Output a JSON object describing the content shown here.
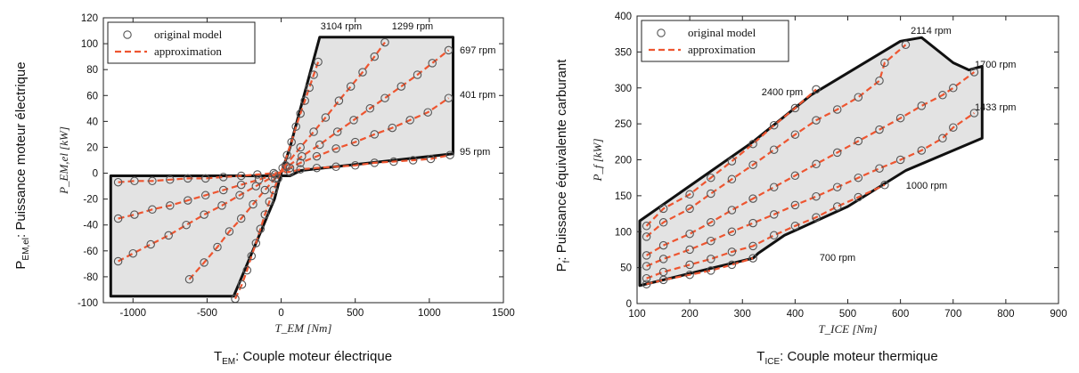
{
  "chart_data": [
    {
      "type": "scatter",
      "xlabel": "T_EM [Nm]",
      "ylabel": "P_EM,el [kW]",
      "xlim": [
        -1200,
        1500
      ],
      "ylim": [
        -100,
        120
      ],
      "xticks": [
        "-1000",
        "-500",
        "0",
        "500",
        "1000",
        "1500"
      ],
      "yticks": [
        "-100",
        "-80",
        "-60",
        "-40",
        "-20",
        "0",
        "20",
        "40",
        "60",
        "80",
        "100",
        "120"
      ],
      "outer_label": {
        "main": "T",
        "sub": "EM",
        "rest": ": Couple moteur électrique"
      },
      "side_label": {
        "main": "P",
        "sub": "EM,el",
        "rest": ": Puissance moteur électrique"
      },
      "legend": {
        "marker": "original model",
        "line": "approximation",
        "position": "top-left"
      },
      "envelope": [
        [
          -1150,
          -2
        ],
        [
          -1150,
          -95
        ],
        [
          -320,
          -95
        ],
        [
          -45,
          -20
        ],
        [
          0,
          0
        ],
        [
          60,
          20
        ],
        [
          260,
          105
        ],
        [
          1160,
          105
        ],
        [
          1160,
          15
        ],
        [
          130,
          2
        ],
        [
          60,
          -2
        ],
        [
          -1150,
          -2
        ]
      ],
      "series": [
        {
          "label": "3104 rpm",
          "points": [
            [
              -310,
              -97
            ],
            [
              -265,
              -86
            ],
            [
              -230,
              -75
            ],
            [
              -200,
              -64
            ],
            [
              -170,
              -54
            ],
            [
              -140,
              -43
            ],
            [
              -110,
              -32
            ],
            [
              -80,
              -22
            ],
            [
              -50,
              -13
            ],
            [
              -20,
              -4
            ],
            [
              10,
              4
            ],
            [
              40,
              14
            ],
            [
              70,
              24
            ],
            [
              100,
              36
            ],
            [
              130,
              46
            ],
            [
              160,
              56
            ],
            [
              190,
              66
            ],
            [
              220,
              76
            ],
            [
              250,
              86
            ]
          ]
        },
        {
          "label": "1299 rpm",
          "points": [
            [
              -620,
              -82
            ],
            [
              -520,
              -69
            ],
            [
              -430,
              -57
            ],
            [
              -350,
              -45
            ],
            [
              -270,
              -35
            ],
            [
              -190,
              -24
            ],
            [
              -110,
              -13
            ],
            [
              -40,
              -4
            ],
            [
              30,
              6
            ],
            [
              130,
              20
            ],
            [
              220,
              32
            ],
            [
              300,
              43
            ],
            [
              390,
              56
            ],
            [
              470,
              67
            ],
            [
              550,
              78
            ],
            [
              630,
              90
            ],
            [
              700,
              101
            ]
          ]
        },
        {
          "label": "697 rpm",
          "points": [
            [
              -1100,
              -68
            ],
            [
              -1000,
              -62
            ],
            [
              -880,
              -55
            ],
            [
              -760,
              -48
            ],
            [
              -640,
              -40
            ],
            [
              -520,
              -32
            ],
            [
              -400,
              -25
            ],
            [
              -280,
              -17
            ],
            [
              -170,
              -10
            ],
            [
              -60,
              -3
            ],
            [
              40,
              5
            ],
            [
              140,
              13
            ],
            [
              260,
              22
            ],
            [
              380,
              32
            ],
            [
              490,
              41
            ],
            [
              600,
              50
            ],
            [
              700,
              58
            ],
            [
              810,
              67
            ],
            [
              920,
              76
            ],
            [
              1020,
              85
            ],
            [
              1130,
              95
            ]
          ]
        },
        {
          "label": "401 rpm",
          "points": [
            [
              -1100,
              -35
            ],
            [
              -990,
              -32
            ],
            [
              -870,
              -28
            ],
            [
              -750,
              -25
            ],
            [
              -630,
              -21
            ],
            [
              -510,
              -17
            ],
            [
              -390,
              -13
            ],
            [
              -270,
              -9
            ],
            [
              -150,
              -5
            ],
            [
              -40,
              -1
            ],
            [
              60,
              4
            ],
            [
              130,
              8
            ],
            [
              240,
              13
            ],
            [
              370,
              19
            ],
            [
              500,
              24
            ],
            [
              630,
              30
            ],
            [
              750,
              35
            ],
            [
              870,
              41
            ],
            [
              990,
              47
            ],
            [
              1130,
              58
            ]
          ]
        },
        {
          "label": "95 rpm",
          "points": [
            [
              -1100,
              -7
            ],
            [
              -990,
              -6
            ],
            [
              -870,
              -6
            ],
            [
              -750,
              -5
            ],
            [
              -630,
              -4
            ],
            [
              -510,
              -4
            ],
            [
              -390,
              -3
            ],
            [
              -270,
              -2
            ],
            [
              -160,
              -1
            ],
            [
              -50,
              0
            ],
            [
              60,
              1
            ],
            [
              130,
              3
            ],
            [
              240,
              4
            ],
            [
              370,
              5
            ],
            [
              500,
              6
            ],
            [
              630,
              8
            ],
            [
              760,
              9
            ],
            [
              890,
              10
            ],
            [
              1010,
              11
            ],
            [
              1140,
              14
            ]
          ]
        }
      ],
      "style": {
        "marker_color": "#555555",
        "line_color": "#ee5530",
        "envelope_fill": "#e3e3e3",
        "envelope_stroke": "#111111"
      }
    },
    {
      "type": "scatter",
      "xlabel": "T_ICE [Nm]",
      "ylabel": "P_f [kW]",
      "xlim": [
        100,
        900
      ],
      "ylim": [
        0,
        400
      ],
      "xticks": [
        "100",
        "200",
        "300",
        "400",
        "500",
        "600",
        "700",
        "800",
        "900"
      ],
      "yticks": [
        "0",
        "50",
        "100",
        "150",
        "200",
        "250",
        "300",
        "350",
        "400"
      ],
      "outer_label": {
        "main": "T",
        "sub": "ICE",
        "rest": ": Couple moteur thermique"
      },
      "side_label": {
        "main": "P",
        "sub": "f",
        "rest": ": Puissance équivalente carburant"
      },
      "legend": {
        "marker": "original model",
        "line": "approximation",
        "position": "top-left"
      },
      "envelope": [
        [
          105,
          115
        ],
        [
          320,
          225
        ],
        [
          430,
          290
        ],
        [
          600,
          365
        ],
        [
          640,
          370
        ],
        [
          700,
          335
        ],
        [
          730,
          325
        ],
        [
          755,
          330
        ],
        [
          755,
          230
        ],
        [
          610,
          185
        ],
        [
          500,
          135
        ],
        [
          380,
          95
        ],
        [
          330,
          70
        ],
        [
          320,
          63
        ],
        [
          105,
          25
        ],
        [
          105,
          115
        ]
      ],
      "series": [
        {
          "label": "2400 rpm",
          "points": [
            [
              118,
              108
            ],
            [
              150,
              132
            ],
            [
              200,
              152
            ],
            [
              240,
              175
            ],
            [
              280,
              198
            ],
            [
              320,
              222
            ],
            [
              360,
              248
            ],
            [
              400,
              272
            ],
            [
              440,
              298
            ]
          ]
        },
        {
          "label": "2114 rpm",
          "points": [
            [
              118,
              93
            ],
            [
              150,
              113
            ],
            [
              200,
              132
            ],
            [
              240,
              153
            ],
            [
              280,
              173
            ],
            [
              320,
              193
            ],
            [
              360,
              214
            ],
            [
              400,
              235
            ],
            [
              440,
              255
            ],
            [
              480,
              270
            ],
            [
              520,
              287
            ],
            [
              560,
              310
            ],
            [
              570,
              335
            ],
            [
              610,
              360
            ]
          ]
        },
        {
          "label": "1700 rpm",
          "points": [
            [
              118,
              67
            ],
            [
              150,
              81
            ],
            [
              200,
              97
            ],
            [
              240,
              113
            ],
            [
              280,
              130
            ],
            [
              320,
              146
            ],
            [
              360,
              162
            ],
            [
              400,
              178
            ],
            [
              440,
              194
            ],
            [
              480,
              210
            ],
            [
              520,
              226
            ],
            [
              560,
              242
            ],
            [
              600,
              258
            ],
            [
              640,
              275
            ],
            [
              680,
              290
            ],
            [
              700,
              300
            ],
            [
              740,
              322
            ]
          ]
        },
        {
          "label": "1433 rpm",
          "points": [
            [
              118,
              52
            ],
            [
              150,
              62
            ],
            [
              200,
              75
            ],
            [
              240,
              87
            ],
            [
              280,
              100
            ],
            [
              320,
              112
            ],
            [
              360,
              124
            ],
            [
              400,
              137
            ],
            [
              440,
              149
            ],
            [
              480,
              162
            ],
            [
              520,
              175
            ],
            [
              560,
              188
            ],
            [
              600,
              200
            ],
            [
              640,
              213
            ],
            [
              680,
              230
            ],
            [
              700,
              245
            ],
            [
              740,
              265
            ]
          ]
        },
        {
          "label": "1000 rpm",
          "points": [
            [
              118,
              35
            ],
            [
              150,
              44
            ],
            [
              200,
              54
            ],
            [
              240,
              62
            ],
            [
              280,
              72
            ],
            [
              320,
              80
            ],
            [
              360,
              95
            ],
            [
              400,
              108
            ],
            [
              440,
              120
            ],
            [
              480,
              135
            ],
            [
              520,
              148
            ],
            [
              570,
              165
            ]
          ]
        },
        {
          "label": "700 rpm",
          "points": [
            [
              118,
              27
            ],
            [
              150,
              33
            ],
            [
              200,
              40
            ],
            [
              240,
              46
            ],
            [
              280,
              54
            ],
            [
              320,
              63
            ]
          ]
        }
      ],
      "style": {
        "marker_color": "#555555",
        "line_color": "#ee5530",
        "envelope_fill": "#e3e3e3",
        "envelope_stroke": "#111111"
      }
    }
  ]
}
